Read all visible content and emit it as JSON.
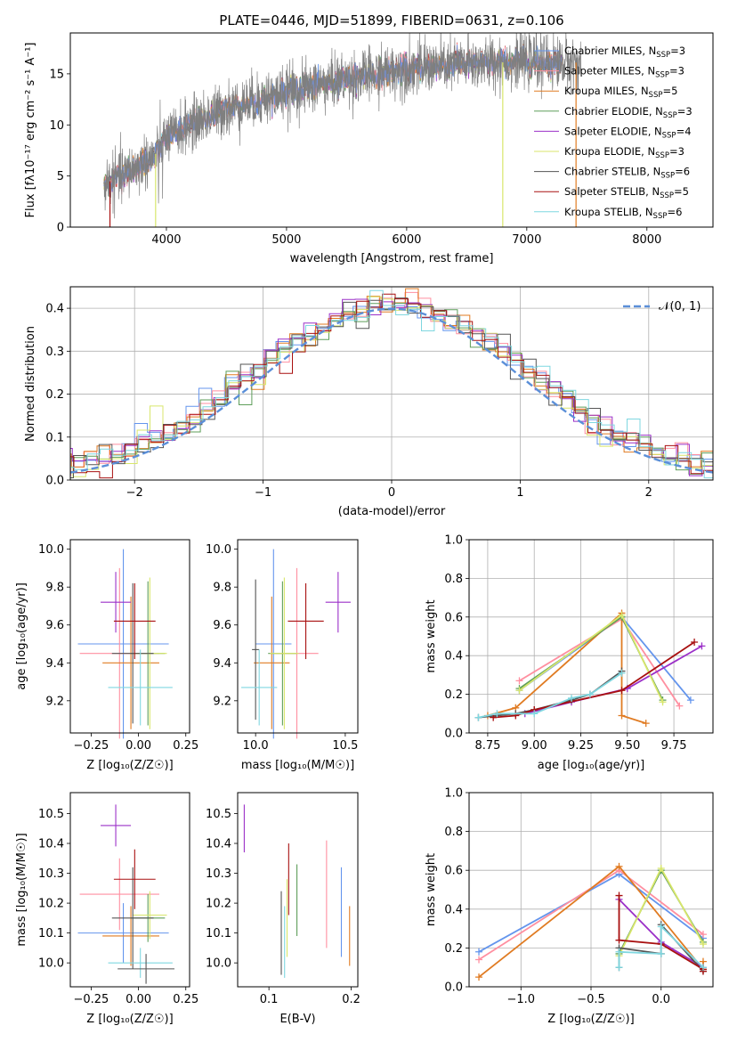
{
  "colors": {
    "chabrier_miles": "#6495ED",
    "salpeter_miles": "#FF8FA0",
    "kroupa_miles": "#E07B22",
    "chabrier_elodie": "#5E9E5A",
    "salpeter_elodie": "#9B30C8",
    "kroupa_elodie": "#D8E66B",
    "chabrier_stelib": "#555555",
    "salpeter_stelib": "#A81010",
    "kroupa_stelib": "#7FD7E0",
    "normal_curve": "#5B8FD8",
    "spectrum_grey": "#7F7F7F"
  },
  "chart_data": [
    {
      "id": "spectrum",
      "type": "line",
      "title": "PLATE=0446, MJD=51899, FIBERID=0631, z=0.106",
      "xlabel": "wavelength [Angstrom, rest frame]",
      "ylabel": "Flux [fλ10⁻¹⁷ erg cm⁻² s⁻¹ A⁻¹]",
      "xlim": [
        3200,
        8550
      ],
      "ylim": [
        0,
        19
      ],
      "xticks": [
        "4000",
        "5000",
        "6000",
        "7000",
        "8000"
      ],
      "yticks": [
        "0",
        "5",
        "10",
        "15"
      ],
      "legend_position": "right",
      "legend": [
        {
          "label": "Chabrier MILES, N",
          "sub": "SSP",
          "val": "=3",
          "color": "#6495ED"
        },
        {
          "label": "Salpeter MILES, N",
          "sub": "SSP",
          "val": "=3",
          "color": "#FF8FA0"
        },
        {
          "label": "Kroupa MILES, N",
          "sub": "SSP",
          "val": "=5",
          "color": "#E07B22"
        },
        {
          "label": "Chabrier ELODIE, N",
          "sub": "SSP",
          "val": "=3",
          "color": "#5E9E5A"
        },
        {
          "label": "Salpeter ELODIE, N",
          "sub": "SSP",
          "val": "=4",
          "color": "#9B30C8"
        },
        {
          "label": "Kroupa ELODIE, N",
          "sub": "SSP",
          "val": "=3",
          "color": "#D8E66B"
        },
        {
          "label": "Chabrier STELIB, N",
          "sub": "SSP",
          "val": "=6",
          "color": "#555555"
        },
        {
          "label": "Salpeter STELIB, N",
          "sub": "SSP",
          "val": "=5",
          "color": "#A81010"
        },
        {
          "label": "Kroupa STELIB, N",
          "sub": "SSP",
          "val": "=6",
          "color": "#7FD7E0"
        }
      ],
      "continuum_points": [
        [
          3500,
          4.3
        ],
        [
          3700,
          5.5
        ],
        [
          3900,
          7.0
        ],
        [
          4000,
          8.7
        ],
        [
          4200,
          10.0
        ],
        [
          4500,
          11.6
        ],
        [
          5000,
          13.2
        ],
        [
          5500,
          14.5
        ],
        [
          6000,
          15.5
        ],
        [
          6500,
          16.0
        ],
        [
          7000,
          16.2
        ],
        [
          7300,
          16.1
        ]
      ],
      "data_range": [
        3480,
        7450
      ],
      "model_range": [
        3480,
        7300
      ]
    },
    {
      "id": "residuals",
      "type": "bar",
      "xlabel": "(data-model)/error",
      "ylabel": "Normed distribution",
      "xlim": [
        -2.5,
        2.5
      ],
      "ylim": [
        0,
        0.45
      ],
      "xticks": [
        "−2",
        "−1",
        "0",
        "1",
        "2"
      ],
      "yticks": [
        "0.0",
        "0.1",
        "0.2",
        "0.3",
        "0.4"
      ],
      "grid": true,
      "legend_position": "top-right",
      "legend": [
        {
          "label": "𝒩(0, 1)",
          "color": "#5B8FD8",
          "dash": true
        }
      ],
      "bin_width": 0.1,
      "curve": "normal(0,1)"
    },
    {
      "id": "age_vs_Z",
      "type": "scatter",
      "xlabel": "Z [log₁₀(Z/Z☉)]",
      "ylabel": "age  [log₁₀(age/yr)]",
      "xlim": [
        -0.36,
        0.27
      ],
      "ylim": [
        9.03,
        10.05
      ],
      "xticks": [
        "−0.25",
        "0.00",
        "0.25"
      ],
      "xtick_values": [
        -0.25,
        0,
        0.25
      ],
      "yticks": [
        "9.2",
        "9.4",
        "9.6",
        "9.8",
        "10.0"
      ],
      "ytick_values": [
        9.2,
        9.4,
        9.6,
        9.8,
        10.0
      ],
      "points": [
        {
          "series": "chabrier_miles",
          "x": -0.08,
          "xerr": 0.24,
          "y": 9.5,
          "yerr": 0.5
        },
        {
          "series": "salpeter_miles",
          "x": -0.1,
          "xerr": 0.21,
          "y": 9.45,
          "yerr": 0.45
        },
        {
          "series": "kroupa_miles",
          "x": -0.04,
          "xerr": 0.15,
          "y": 9.4,
          "yerr": 0.35
        },
        {
          "series": "chabrier_elodie",
          "x": 0.05,
          "xerr": 0.09,
          "y": 9.45,
          "yerr": 0.38
        },
        {
          "series": "salpeter_elodie",
          "x": -0.12,
          "xerr": 0.08,
          "y": 9.72,
          "yerr": 0.16
        },
        {
          "series": "kroupa_elodie",
          "x": 0.06,
          "xerr": 0.09,
          "y": 9.45,
          "yerr": 0.4
        },
        {
          "series": "chabrier_stelib",
          "x": -0.03,
          "xerr": 0.11,
          "y": 9.45,
          "yerr": 0.37
        },
        {
          "series": "salpeter_stelib",
          "x": -0.02,
          "xerr": 0.11,
          "y": 9.62,
          "yerr": 0.2
        },
        {
          "series": "kroupa_stelib",
          "x": 0.01,
          "xerr": 0.17,
          "y": 9.27,
          "yerr": 0.2
        }
      ]
    },
    {
      "id": "age_vs_mass",
      "type": "scatter",
      "xlabel": "mass [log₁₀(M/M☉)]",
      "ylabel": "",
      "xlim": [
        9.9,
        10.57
      ],
      "ylim": [
        9.03,
        10.05
      ],
      "xticks": [
        "10.0",
        "10.5"
      ],
      "xtick_values": [
        10.0,
        10.5
      ],
      "yticks": [
        "9.2",
        "9.4",
        "9.6",
        "9.8",
        "10.0"
      ],
      "ytick_values": [
        9.2,
        9.4,
        9.6,
        9.8,
        10.0
      ],
      "points": [
        {
          "series": "chabrier_miles",
          "x": 10.1,
          "xerr": 0.1,
          "y": 9.5,
          "yerr": 0.5
        },
        {
          "series": "salpeter_miles",
          "x": 10.23,
          "xerr": 0.12,
          "y": 9.45,
          "yerr": 0.45
        },
        {
          "series": "kroupa_miles",
          "x": 10.09,
          "xerr": 0.1,
          "y": 9.4,
          "yerr": 0.35
        },
        {
          "series": "chabrier_elodie",
          "x": 10.15,
          "xerr": 0.08,
          "y": 9.45,
          "yerr": 0.38
        },
        {
          "series": "salpeter_elodie",
          "x": 10.46,
          "xerr": 0.07,
          "y": 9.72,
          "yerr": 0.16
        },
        {
          "series": "kroupa_elodie",
          "x": 10.16,
          "xerr": 0.08,
          "y": 9.45,
          "yerr": 0.4
        },
        {
          "series": "chabrier_stelib",
          "x": 10.0,
          "xerr": 0.02,
          "y": 9.47,
          "yerr": 0.37
        },
        {
          "series": "salpeter_stelib",
          "x": 10.28,
          "xerr": 0.1,
          "y": 9.62,
          "yerr": 0.2
        },
        {
          "series": "kroupa_stelib",
          "x": 10.02,
          "xerr": 0.1,
          "y": 9.27,
          "yerr": 0.2
        }
      ]
    },
    {
      "id": "weight_vs_age",
      "type": "line",
      "xlabel": "age  [log₁₀(age/yr)]",
      "ylabel": "mass weight",
      "xlim": [
        8.65,
        9.96
      ],
      "ylim": [
        0,
        1
      ],
      "grid": true,
      "xticks": [
        "8.75",
        "9.00",
        "9.25",
        "9.50",
        "9.75"
      ],
      "xtick_values": [
        8.75,
        9.0,
        9.25,
        9.5,
        9.75
      ],
      "yticks": [
        "0.0",
        "0.2",
        "0.4",
        "0.6",
        "0.8",
        "1.0"
      ],
      "ytick_values": [
        0,
        0.2,
        0.4,
        0.6,
        0.8,
        1.0
      ],
      "series": [
        {
          "series": "chabrier_miles",
          "x": [
            8.92,
            9.47,
            9.84
          ],
          "y": [
            0.22,
            0.6,
            0.17
          ]
        },
        {
          "series": "salpeter_miles",
          "x": [
            8.92,
            9.47,
            9.78
          ],
          "y": [
            0.27,
            0.59,
            0.14
          ]
        },
        {
          "series": "kroupa_miles",
          "x": [
            8.75,
            8.9,
            9.47,
            9.47,
            9.6
          ],
          "y": [
            0.09,
            0.13,
            0.62,
            0.09,
            0.05
          ]
        },
        {
          "series": "chabrier_elodie",
          "x": [
            8.92,
            9.47,
            9.69
          ],
          "y": [
            0.23,
            0.6,
            0.17
          ]
        },
        {
          "series": "salpeter_elodie",
          "x": [
            8.95,
            9.2,
            9.5,
            9.9
          ],
          "y": [
            0.1,
            0.16,
            0.23,
            0.45
          ]
        },
        {
          "series": "kroupa_elodie",
          "x": [
            8.92,
            9.47,
            9.69
          ],
          "y": [
            0.22,
            0.61,
            0.16
          ]
        },
        {
          "series": "chabrier_stelib",
          "x": [
            8.7,
            8.9,
            9.0,
            9.2,
            9.3,
            9.47
          ],
          "y": [
            0.08,
            0.1,
            0.12,
            0.17,
            0.2,
            0.32
          ]
        },
        {
          "series": "salpeter_stelib",
          "x": [
            8.78,
            8.9,
            9.0,
            9.47,
            9.86
          ],
          "y": [
            0.08,
            0.09,
            0.12,
            0.22,
            0.47
          ]
        },
        {
          "series": "kroupa_stelib",
          "x": [
            8.7,
            8.8,
            9.0,
            9.2,
            9.3,
            9.47
          ],
          "y": [
            0.08,
            0.1,
            0.1,
            0.18,
            0.2,
            0.31
          ]
        }
      ]
    },
    {
      "id": "mass_vs_Z",
      "type": "scatter",
      "xlabel": "Z [log₁₀(Z/Z☉)]",
      "ylabel": "mass [log₁₀(M/M☉)]",
      "xlim": [
        -0.36,
        0.27
      ],
      "ylim": [
        9.92,
        10.57
      ],
      "xticks": [
        "−0.25",
        "0.00",
        "0.25"
      ],
      "xtick_values": [
        -0.25,
        0,
        0.25
      ],
      "yticks": [
        "10.0",
        "10.1",
        "10.2",
        "10.3",
        "10.4",
        "10.5"
      ],
      "ytick_values": [
        10.0,
        10.1,
        10.2,
        10.3,
        10.4,
        10.5
      ],
      "points": [
        {
          "series": "chabrier_miles",
          "x": -0.08,
          "xerr": 0.24,
          "y": 10.1,
          "yerr": 0.1
        },
        {
          "series": "salpeter_miles",
          "x": -0.1,
          "xerr": 0.21,
          "y": 10.23,
          "yerr": 0.12
        },
        {
          "series": "kroupa_miles",
          "x": -0.04,
          "xerr": 0.15,
          "y": 10.09,
          "yerr": 0.1
        },
        {
          "series": "chabrier_elodie",
          "x": 0.05,
          "xerr": 0.09,
          "y": 10.15,
          "yerr": 0.08
        },
        {
          "series": "salpeter_elodie",
          "x": -0.12,
          "xerr": 0.08,
          "y": 10.46,
          "yerr": 0.07
        },
        {
          "series": "kroupa_elodie",
          "x": 0.06,
          "xerr": 0.09,
          "y": 10.16,
          "yerr": 0.08
        },
        {
          "series": "chabrier_stelib",
          "x": -0.03,
          "xerr": 0.11,
          "y": 10.15,
          "yerr": 0.17
        },
        {
          "series": "salpeter_stelib",
          "x": -0.02,
          "xerr": 0.11,
          "y": 10.28,
          "yerr": 0.1
        },
        {
          "series": "kroupa_stelib",
          "x": 0.01,
          "xerr": 0.17,
          "y": 10.0,
          "yerr": 0.05
        },
        {
          "series": "chabrier_stelib",
          "x": 0.04,
          "xerr": 0.15,
          "y": 9.98,
          "yerr": 0.05
        }
      ]
    },
    {
      "id": "mass_vs_ebv",
      "type": "scatter",
      "xlabel": "E(B-V)",
      "ylabel": "",
      "xlim": [
        0.062,
        0.208
      ],
      "ylim": [
        9.92,
        10.57
      ],
      "xticks": [
        "0.1",
        "0.2"
      ],
      "xtick_values": [
        0.1,
        0.2
      ],
      "yticks": [
        "10.0",
        "10.1",
        "10.2",
        "10.3",
        "10.4",
        "10.5"
      ],
      "ytick_values": [
        10.0,
        10.1,
        10.2,
        10.3,
        10.4,
        10.5
      ],
      "points": [
        {
          "series": "chabrier_miles",
          "x": 0.188,
          "y": 10.17,
          "yerr": 0.15
        },
        {
          "series": "salpeter_miles",
          "x": 0.17,
          "y": 10.23,
          "yerr": 0.18
        },
        {
          "series": "kroupa_miles",
          "x": 0.198,
          "y": 10.09,
          "yerr": 0.1
        },
        {
          "series": "chabrier_elodie",
          "x": 0.134,
          "y": 10.21,
          "yerr": 0.12
        },
        {
          "series": "salpeter_elodie",
          "x": 0.07,
          "y": 10.45,
          "yerr": 0.08
        },
        {
          "series": "kroupa_elodie",
          "x": 0.122,
          "y": 10.15,
          "yerr": 0.13
        },
        {
          "series": "chabrier_stelib",
          "x": 0.115,
          "y": 10.1,
          "yerr": 0.14
        },
        {
          "series": "salpeter_stelib",
          "x": 0.124,
          "y": 10.28,
          "yerr": 0.12
        },
        {
          "series": "kroupa_stelib",
          "x": 0.119,
          "y": 10.07,
          "yerr": 0.12
        }
      ]
    },
    {
      "id": "weight_vs_Z",
      "type": "line",
      "xlabel": "Z [log₁₀(Z/Z☉)]",
      "ylabel": "mass weight",
      "xlim": [
        -1.37,
        0.37
      ],
      "ylim": [
        0,
        1
      ],
      "grid": true,
      "xticks": [
        "−1.0",
        "−0.5",
        "0.0"
      ],
      "xtick_values": [
        -1.0,
        -0.5,
        0.0
      ],
      "yticks": [
        "0.0",
        "0.2",
        "0.4",
        "0.6",
        "0.8",
        "1.0"
      ],
      "ytick_values": [
        0,
        0.2,
        0.4,
        0.6,
        0.8,
        1.0
      ],
      "series": [
        {
          "series": "chabrier_miles",
          "x": [
            -1.3,
            -0.3,
            0.3
          ],
          "y": [
            0.18,
            0.58,
            0.25
          ]
        },
        {
          "series": "salpeter_miles",
          "x": [
            -1.3,
            -0.3,
            0.3
          ],
          "y": [
            0.14,
            0.6,
            0.27
          ]
        },
        {
          "series": "kroupa_miles",
          "x": [
            -1.3,
            -0.3,
            0.3,
            0.3
          ],
          "y": [
            0.05,
            0.62,
            0.09,
            0.13
          ]
        },
        {
          "series": "chabrier_elodie",
          "x": [
            -0.3,
            0.0,
            0.3
          ],
          "y": [
            0.17,
            0.6,
            0.23
          ]
        },
        {
          "series": "salpeter_elodie",
          "x": [
            -0.3,
            0.0,
            0.3
          ],
          "y": [
            0.45,
            0.23,
            0.1
          ]
        },
        {
          "series": "kroupa_elodie",
          "x": [
            -0.3,
            0.0,
            0.3
          ],
          "y": [
            0.16,
            0.61,
            0.22
          ]
        },
        {
          "series": "chabrier_stelib",
          "x": [
            -0.3,
            -0.3,
            0.0,
            0.0,
            0.3
          ],
          "y": [
            0.1,
            0.2,
            0.17,
            0.32,
            0.08
          ]
        },
        {
          "series": "salpeter_stelib",
          "x": [
            -0.3,
            -0.3,
            0.0,
            0.3,
            0.3
          ],
          "y": [
            0.47,
            0.24,
            0.22,
            0.09,
            0.08
          ]
        },
        {
          "series": "kroupa_stelib",
          "x": [
            -0.3,
            -0.3,
            0.0,
            0.0,
            0.3
          ],
          "y": [
            0.1,
            0.18,
            0.17,
            0.31,
            0.1
          ]
        }
      ]
    }
  ]
}
